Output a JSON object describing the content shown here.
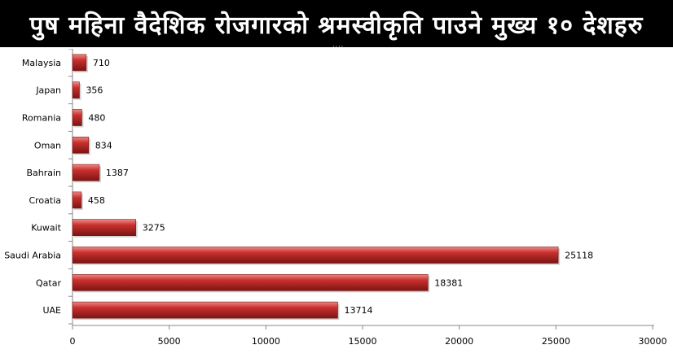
{
  "title": "पुष महिना वैदेशिक रोजगारको श्रमस्वीकृति पाउने मुख्य १० देशहरु",
  "chart_data": {
    "type": "bar",
    "orientation": "horizontal",
    "categories": [
      "Malaysia",
      "Japan",
      "Romania",
      "Oman",
      "Bahrain",
      "Croatia",
      "Kuwait",
      "Saudi Arabia",
      "Qatar",
      "UAE"
    ],
    "values": [
      710,
      356,
      480,
      834,
      1387,
      458,
      3275,
      25118,
      18381,
      13714
    ],
    "xlim": [
      0,
      30000
    ],
    "xticks": [
      0,
      5000,
      10000,
      15000,
      20000,
      25000,
      30000
    ],
    "grid": false,
    "legend": "none",
    "bar_color": "#c8302e",
    "bar_highlight": "#f08a86",
    "bar_shadow": "#7a1513"
  }
}
